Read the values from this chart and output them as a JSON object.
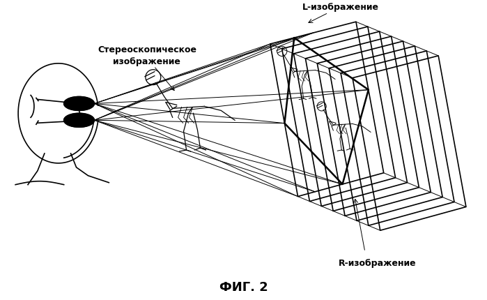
{
  "title": "ФИГ. 2",
  "label_L": "L-изображение",
  "label_R": "R-изображение",
  "label_stereo": "Стереоскопическое\nизображение",
  "bg_color": "#ffffff",
  "line_color": "#000000",
  "fig_width": 6.99,
  "fig_height": 4.31
}
